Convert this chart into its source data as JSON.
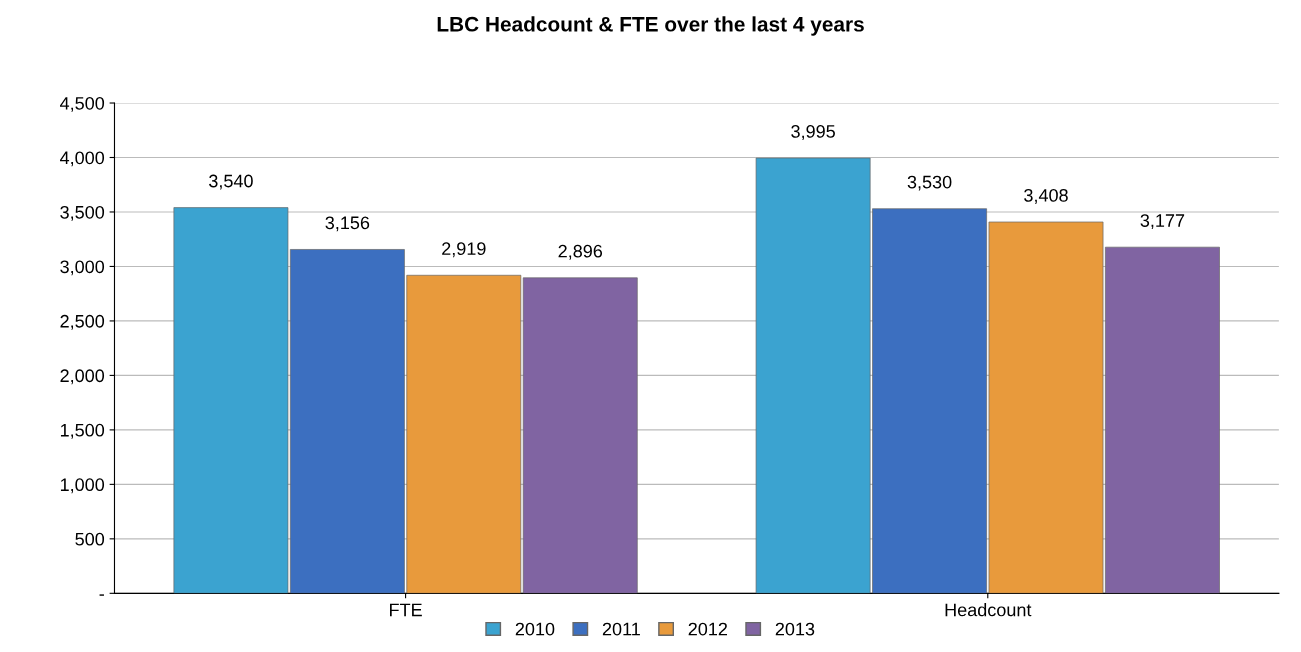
{
  "chart_data": {
    "type": "bar",
    "title": "LBC Headcount & FTE over the last 4 years",
    "categories": [
      "FTE",
      "Headcount"
    ],
    "series": [
      {
        "name": "2010",
        "color": "#3ba3d0",
        "values": [
          3540,
          3995
        ],
        "value_labels": [
          "3,540",
          "3,995"
        ]
      },
      {
        "name": "2011",
        "color": "#3c6fc0",
        "values": [
          3156,
          3530
        ],
        "value_labels": [
          "3,156",
          "3,530"
        ]
      },
      {
        "name": "2012",
        "color": "#e89a3c",
        "values": [
          2919,
          3408
        ],
        "value_labels": [
          "2,919",
          "3,408"
        ]
      },
      {
        "name": "2013",
        "color": "#8064a2",
        "values": [
          2896,
          3177
        ],
        "value_labels": [
          "2,896",
          "3,177"
        ]
      }
    ],
    "ylim": [
      0,
      4500
    ],
    "yticks": [
      {
        "value": 0,
        "label": "-"
      },
      {
        "value": 500,
        "label": "500"
      },
      {
        "value": 1000,
        "label": "1,000"
      },
      {
        "value": 1500,
        "label": "1,500"
      },
      {
        "value": 2000,
        "label": "2,000"
      },
      {
        "value": 2500,
        "label": "2,500"
      },
      {
        "value": 3000,
        "label": "3,000"
      },
      {
        "value": 3500,
        "label": "3,500"
      },
      {
        "value": 4000,
        "label": "4,000"
      },
      {
        "value": 4500,
        "label": "4,500"
      }
    ],
    "grid": "y",
    "legend": "bottom"
  }
}
